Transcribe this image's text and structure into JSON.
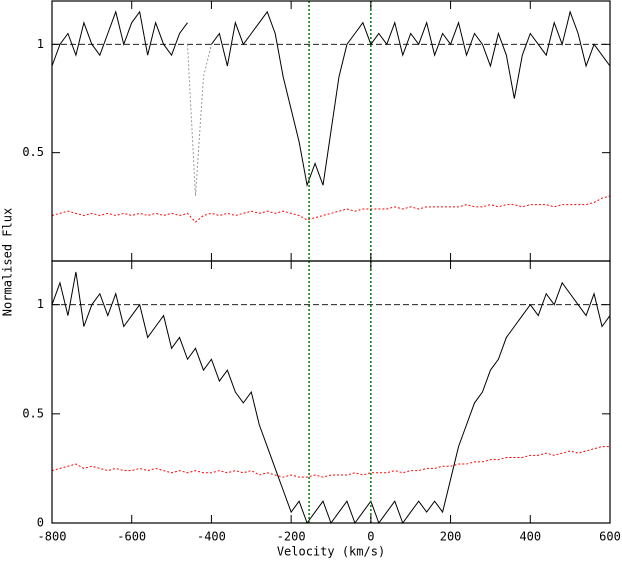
{
  "chart_data": [
    {
      "type": "line",
      "y_label": "Normalised Flux",
      "xlim": [
        -800,
        600
      ],
      "ylim": [
        0,
        1.2
      ],
      "xticks": [
        -800,
        -600,
        -400,
        -200,
        0,
        200,
        400,
        600
      ],
      "yticks": [
        0.5,
        1
      ],
      "hline": 1,
      "vlines": [
        -155,
        0
      ],
      "vline_color": "#007a00",
      "x": [
        -800,
        -780,
        -760,
        -740,
        -720,
        -700,
        -680,
        -660,
        -640,
        -620,
        -600,
        -580,
        -560,
        -540,
        -520,
        -500,
        -480,
        -460,
        -440,
        -420,
        -400,
        -380,
        -360,
        -340,
        -320,
        -300,
        -280,
        -260,
        -240,
        -220,
        -200,
        -180,
        -160,
        -140,
        -120,
        -100,
        -80,
        -60,
        -40,
        -20,
        0,
        20,
        40,
        60,
        80,
        100,
        120,
        140,
        160,
        180,
        200,
        220,
        240,
        260,
        280,
        300,
        320,
        340,
        360,
        380,
        400,
        420,
        440,
        460,
        480,
        500,
        520,
        540,
        560,
        580,
        600
      ],
      "series": [
        {
          "color": "#000000",
          "style": "solid",
          "values": [
            0.9,
            1.0,
            1.05,
            0.95,
            1.1,
            1.0,
            0.95,
            1.05,
            1.15,
            1.0,
            1.1,
            1.15,
            0.95,
            1.1,
            1.0,
            0.95,
            1.05,
            1.1,
            null,
            null,
            1.0,
            1.05,
            0.9,
            1.1,
            1.0,
            1.05,
            1.1,
            1.15,
            1.05,
            0.85,
            0.7,
            0.55,
            0.35,
            0.45,
            0.35,
            0.6,
            0.85,
            1.0,
            1.05,
            1.1,
            1.0,
            1.05,
            1.0,
            1.1,
            0.95,
            1.05,
            1.0,
            1.1,
            0.95,
            1.05,
            1.0,
            1.1,
            0.95,
            1.05,
            1.0,
            0.9,
            1.05,
            0.95,
            0.75,
            0.95,
            1.05,
            1.0,
            0.95,
            1.1,
            1.0,
            1.15,
            1.05,
            0.9,
            1.0,
            0.95,
            0.9
          ]
        },
        {
          "color": "#999999",
          "style": "dotted",
          "values": [
            null,
            null,
            null,
            null,
            null,
            null,
            null,
            null,
            null,
            null,
            null,
            null,
            null,
            null,
            null,
            null,
            null,
            1.0,
            0.3,
            0.85,
            1.0,
            null,
            null,
            null,
            null,
            null,
            null,
            null,
            null,
            null,
            null,
            null,
            null,
            null,
            null,
            null,
            null,
            null,
            null,
            null,
            null,
            null,
            null,
            null,
            null,
            null,
            null,
            null,
            null,
            null,
            null,
            null,
            null,
            null,
            null,
            null,
            null,
            null,
            null,
            null,
            null,
            null,
            null,
            null,
            null,
            null,
            null,
            null,
            null,
            null,
            null
          ]
        },
        {
          "color": "#ff0000",
          "style": "dotted",
          "values": [
            0.21,
            0.22,
            0.23,
            0.22,
            0.21,
            0.22,
            0.21,
            0.22,
            0.21,
            0.22,
            0.21,
            0.22,
            0.21,
            0.22,
            0.21,
            0.22,
            0.21,
            0.22,
            0.18,
            0.21,
            0.22,
            0.21,
            0.22,
            0.21,
            0.22,
            0.23,
            0.22,
            0.23,
            0.22,
            0.23,
            0.22,
            0.21,
            0.19,
            0.2,
            0.21,
            0.22,
            0.23,
            0.24,
            0.23,
            0.24,
            0.24,
            0.24,
            0.24,
            0.25,
            0.24,
            0.25,
            0.24,
            0.25,
            0.25,
            0.25,
            0.25,
            0.25,
            0.26,
            0.25,
            0.25,
            0.26,
            0.25,
            0.26,
            0.26,
            0.25,
            0.26,
            0.26,
            0.26,
            0.25,
            0.26,
            0.26,
            0.26,
            0.26,
            0.27,
            0.29,
            0.3
          ]
        }
      ]
    },
    {
      "type": "line",
      "x_label": "Velocity (km/s)",
      "xlim": [
        -800,
        600
      ],
      "ylim": [
        0,
        1.2
      ],
      "xticks": [
        -800,
        -600,
        -400,
        -200,
        0,
        200,
        400,
        600
      ],
      "yticks": [
        0,
        0.5,
        1
      ],
      "hline": 1,
      "vlines": [
        -155,
        0
      ],
      "vline_color": "#007a00",
      "x": [
        -800,
        -780,
        -760,
        -740,
        -720,
        -700,
        -680,
        -660,
        -640,
        -620,
        -600,
        -580,
        -560,
        -540,
        -520,
        -500,
        -480,
        -460,
        -440,
        -420,
        -400,
        -380,
        -360,
        -340,
        -320,
        -300,
        -280,
        -260,
        -240,
        -220,
        -200,
        -180,
        -160,
        -140,
        -120,
        -100,
        -80,
        -60,
        -40,
        -20,
        0,
        20,
        40,
        60,
        80,
        100,
        120,
        140,
        160,
        180,
        200,
        220,
        240,
        260,
        280,
        300,
        320,
        340,
        360,
        380,
        400,
        420,
        440,
        460,
        480,
        500,
        520,
        540,
        560,
        580,
        600
      ],
      "series": [
        {
          "color": "#000000",
          "style": "solid",
          "values": [
            1.0,
            1.1,
            0.95,
            1.15,
            0.9,
            1.0,
            1.05,
            0.95,
            1.05,
            0.9,
            0.95,
            1.0,
            0.85,
            0.9,
            0.95,
            0.8,
            0.85,
            0.75,
            0.8,
            0.7,
            0.75,
            0.65,
            0.7,
            0.6,
            0.55,
            0.6,
            0.45,
            0.35,
            0.25,
            0.15,
            0.05,
            0.1,
            0.0,
            0.05,
            0.1,
            0.0,
            0.05,
            0.1,
            0.0,
            0.05,
            0.1,
            0.0,
            0.05,
            0.1,
            0.0,
            0.05,
            0.1,
            0.05,
            0.1,
            0.05,
            0.2,
            0.35,
            0.45,
            0.55,
            0.6,
            0.7,
            0.75,
            0.85,
            0.9,
            0.95,
            1.0,
            0.95,
            1.05,
            1.0,
            1.1,
            1.05,
            1.0,
            0.95,
            1.05,
            0.9,
            0.95
          ]
        },
        {
          "color": "#ff0000",
          "style": "dotted",
          "values": [
            0.24,
            0.25,
            0.26,
            0.27,
            0.25,
            0.26,
            0.25,
            0.24,
            0.25,
            0.24,
            0.24,
            0.25,
            0.24,
            0.25,
            0.24,
            0.23,
            0.24,
            0.23,
            0.24,
            0.23,
            0.23,
            0.24,
            0.23,
            0.24,
            0.23,
            0.24,
            0.22,
            0.23,
            0.22,
            0.21,
            0.22,
            0.21,
            0.21,
            0.22,
            0.21,
            0.22,
            0.22,
            0.22,
            0.23,
            0.22,
            0.23,
            0.23,
            0.23,
            0.24,
            0.23,
            0.24,
            0.24,
            0.25,
            0.25,
            0.26,
            0.26,
            0.27,
            0.27,
            0.28,
            0.28,
            0.29,
            0.29,
            0.3,
            0.3,
            0.3,
            0.31,
            0.31,
            0.32,
            0.31,
            0.32,
            0.33,
            0.32,
            0.33,
            0.34,
            0.35,
            0.35
          ]
        }
      ]
    }
  ]
}
